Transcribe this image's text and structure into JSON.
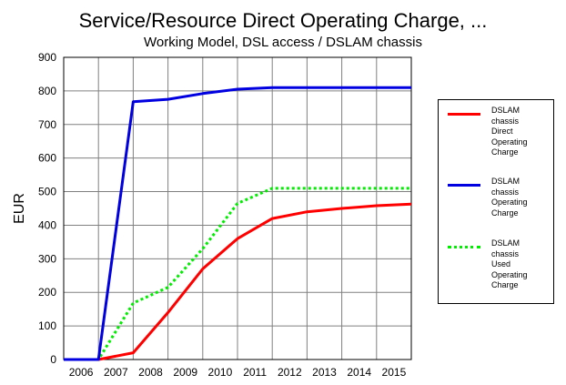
{
  "chart_data": {
    "type": "line",
    "title": "Service/Resource Direct Operating Charge, ...",
    "subtitle": "Working Model, DSL access / DSLAM chassis",
    "ylabel": "EUR",
    "xlabel": "",
    "ylim": [
      0,
      900
    ],
    "yticks": [
      "0",
      "100",
      "200",
      "300",
      "400",
      "500",
      "600",
      "700",
      "800",
      "900"
    ],
    "x_tick_labels": [
      "2006",
      "2007",
      "2008",
      "2009",
      "2010",
      "2011",
      "2012",
      "2013",
      "2014",
      "2015"
    ],
    "xlim": [
      2006,
      2016
    ],
    "grid": true,
    "legend_position": "right",
    "series": [
      {
        "name": "DSLAM chassis Direct Operating Charge",
        "legend_lines": [
          "DSLAM",
          "chassis",
          "Direct",
          "Operating",
          "Charge"
        ],
        "color": "#ff0000",
        "style": "solid",
        "x": [
          2006,
          2007,
          2008,
          2009,
          2010,
          2011,
          2012,
          2013,
          2014,
          2015,
          2016
        ],
        "y": [
          0,
          0,
          20,
          140,
          270,
          360,
          420,
          440,
          450,
          458,
          463
        ]
      },
      {
        "name": "DSLAM chassis Operating Charge",
        "legend_lines": [
          "DSLAM",
          "chassis",
          "Operating",
          "Charge"
        ],
        "color": "#0000e0",
        "style": "solid",
        "x": [
          2006,
          2007,
          2008,
          2009,
          2010,
          2011,
          2012,
          2013,
          2014,
          2015,
          2016
        ],
        "y": [
          0,
          0,
          768,
          775,
          792,
          805,
          810,
          810,
          810,
          810,
          810
        ]
      },
      {
        "name": "DSLAM chassis Used Operating Charge",
        "legend_lines": [
          "DSLAM",
          "chassis",
          "Used",
          "Operating",
          "Charge"
        ],
        "color": "#00ee00",
        "style": "dotted",
        "x": [
          2006,
          2007,
          2008,
          2009,
          2010,
          2011,
          2012,
          2013,
          2014,
          2015,
          2016
        ],
        "y": [
          0,
          0,
          168,
          215,
          330,
          465,
          510,
          510,
          510,
          510,
          510
        ]
      }
    ]
  }
}
